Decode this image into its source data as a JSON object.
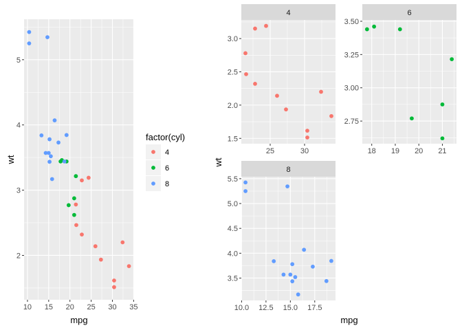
{
  "chart_data": [
    {
      "type": "scatter",
      "title": "",
      "xlabel": "mpg",
      "ylabel": "wt",
      "xlim": [
        9.2,
        35.1
      ],
      "ylim": [
        1.32,
        5.62
      ],
      "x_ticks": [
        10,
        15,
        20,
        25,
        30,
        35
      ],
      "y_ticks": [
        2,
        3,
        4,
        5
      ],
      "grid": true,
      "legend": {
        "title": "factor(cyl)",
        "position": "right",
        "entries": [
          "4",
          "6",
          "8"
        ]
      },
      "colors": {
        "4": "#F8766D",
        "6": "#00BA38",
        "8": "#619CFF"
      },
      "series": [
        {
          "name": "4",
          "points": [
            [
              22.8,
              2.32
            ],
            [
              24.4,
              3.19
            ],
            [
              22.8,
              3.15
            ],
            [
              32.4,
              2.2
            ],
            [
              30.4,
              1.615
            ],
            [
              33.9,
              1.835
            ],
            [
              21.5,
              2.465
            ],
            [
              27.3,
              1.935
            ],
            [
              26.0,
              2.14
            ],
            [
              30.4,
              1.513
            ],
            [
              21.4,
              2.78
            ]
          ]
        },
        {
          "name": "6",
          "points": [
            [
              21.0,
              2.62
            ],
            [
              21.0,
              2.875
            ],
            [
              21.4,
              3.215
            ],
            [
              18.1,
              3.46
            ],
            [
              19.2,
              3.44
            ],
            [
              17.8,
              3.44
            ],
            [
              19.7,
              2.77
            ]
          ]
        },
        {
          "name": "8",
          "points": [
            [
              18.7,
              3.44
            ],
            [
              14.3,
              3.57
            ],
            [
              16.4,
              4.07
            ],
            [
              17.3,
              3.73
            ],
            [
              15.2,
              3.78
            ],
            [
              10.4,
              5.25
            ],
            [
              10.4,
              5.424
            ],
            [
              14.7,
              5.345
            ],
            [
              15.5,
              3.52
            ],
            [
              15.2,
              3.435
            ],
            [
              13.3,
              3.84
            ],
            [
              19.2,
              3.845
            ],
            [
              15.8,
              3.17
            ],
            [
              15.0,
              3.57
            ]
          ]
        }
      ]
    },
    {
      "type": "scatter",
      "title": "",
      "xlabel": "mpg",
      "ylabel": "wt",
      "grid": true,
      "facets": [
        {
          "strip": "4",
          "color": "#F8766D",
          "xlim": [
            20.8,
            34.5
          ],
          "ylim": [
            1.42,
            3.28
          ],
          "x_ticks": [
            25,
            30
          ],
          "y_ticks": [
            1.5,
            2.0,
            2.5,
            3.0
          ],
          "y_tick_labels": [
            "1.5",
            "2.0",
            "2.5",
            "3.0"
          ],
          "points": [
            [
              22.8,
              2.32
            ],
            [
              24.4,
              3.19
            ],
            [
              22.8,
              3.15
            ],
            [
              32.4,
              2.2
            ],
            [
              30.4,
              1.615
            ],
            [
              33.9,
              1.835
            ],
            [
              21.5,
              2.465
            ],
            [
              27.3,
              1.935
            ],
            [
              26.0,
              2.14
            ],
            [
              30.4,
              1.513
            ],
            [
              21.4,
              2.78
            ]
          ]
        },
        {
          "strip": "6",
          "color": "#00BA38",
          "xlim": [
            17.6,
            21.6
          ],
          "ylim": [
            2.58,
            3.51
          ],
          "x_ticks": [
            18,
            19,
            20,
            21
          ],
          "y_ticks": [
            2.75,
            3.0,
            3.25,
            3.5
          ],
          "y_tick_labels": [
            "2.75",
            "3.00",
            "3.25",
            "3.50"
          ],
          "points": [
            [
              21.0,
              2.62
            ],
            [
              21.0,
              2.875
            ],
            [
              21.4,
              3.215
            ],
            [
              18.1,
              3.46
            ],
            [
              19.2,
              3.44
            ],
            [
              17.8,
              3.44
            ],
            [
              19.7,
              2.77
            ]
          ]
        },
        {
          "strip": "8",
          "color": "#619CFF",
          "xlim": [
            9.97,
            19.63
          ],
          "ylim": [
            3.05,
            5.54
          ],
          "x_ticks": [
            10,
            12.5,
            15,
            17.5
          ],
          "y_ticks": [
            3.5,
            4.0,
            4.5,
            5.0,
            5.5
          ],
          "x_tick_labels": [
            "10.0",
            "12.5",
            "15.0",
            "17.5"
          ],
          "y_tick_labels": [
            "3.5",
            "4.0",
            "4.5",
            "5.0",
            "5.5"
          ],
          "points": [
            [
              18.7,
              3.44
            ],
            [
              14.3,
              3.57
            ],
            [
              16.4,
              4.07
            ],
            [
              17.3,
              3.73
            ],
            [
              15.2,
              3.78
            ],
            [
              10.4,
              5.25
            ],
            [
              10.4,
              5.424
            ],
            [
              14.7,
              5.345
            ],
            [
              15.5,
              3.52
            ],
            [
              15.2,
              3.435
            ],
            [
              13.3,
              3.84
            ],
            [
              19.2,
              3.845
            ],
            [
              15.8,
              3.17
            ],
            [
              15.0,
              3.57
            ]
          ]
        }
      ]
    }
  ]
}
